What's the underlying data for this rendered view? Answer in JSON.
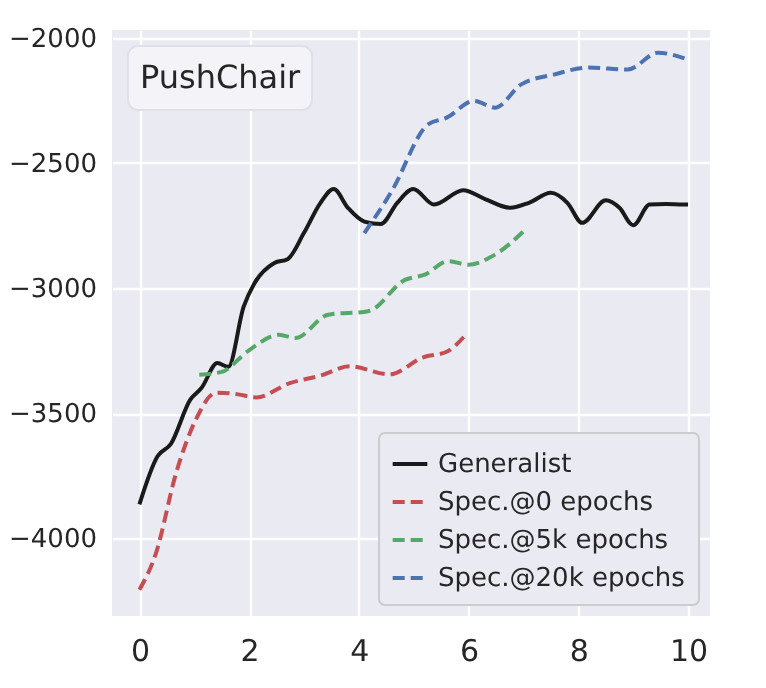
{
  "chart_data": {
    "type": "line",
    "title": "PushChair",
    "xlim": [
      -0.5,
      10.4
    ],
    "xticks": [
      0,
      2,
      4,
      6,
      8,
      10
    ],
    "ylim": [
      -4310,
      -1970
    ],
    "yticks": [
      -4000,
      -3500,
      -3000,
      -2500,
      -2000
    ],
    "grid": true,
    "legend": "bottom right",
    "series": [
      {
        "name": "Generalist",
        "color": "#1a1a1a",
        "line_style": "solid",
        "x": [
          0,
          0.33,
          0.57,
          0.93,
          1.13,
          1.42,
          1.62,
          1.9,
          2.1,
          2.46,
          2.7,
          3.0,
          3.3,
          3.54,
          3.8,
          4.1,
          4.4,
          4.7,
          4.99,
          5.37,
          5.9,
          6.3,
          6.76,
          7.1,
          7.5,
          7.8,
          8.07,
          8.5,
          8.75,
          9.0,
          9.3,
          9.6,
          9.9,
          10
        ],
        "values": [
          -3864,
          -3672,
          -3624,
          -3445,
          -3400,
          -3300,
          -3315,
          -3075,
          -2980,
          -2900,
          -2885,
          -2780,
          -2660,
          -2605,
          -2680,
          -2735,
          -2745,
          -2660,
          -2605,
          -2667,
          -2610,
          -2645,
          -2680,
          -2660,
          -2620,
          -2660,
          -2740,
          -2650,
          -2680,
          -2750,
          -2667,
          -2665,
          -2667,
          -2667
        ]
      },
      {
        "name": "Spec.@0 epochs",
        "color": "#c44e52",
        "line_style": "dashed",
        "x": [
          0,
          0.3,
          0.67,
          1.03,
          1.4,
          1.8,
          2.13,
          2.74,
          3.3,
          3.83,
          4.56,
          5.17,
          5.6,
          5.96
        ],
        "values": [
          -4205,
          -4060,
          -3738,
          -3525,
          -3418,
          -3425,
          -3437,
          -3380,
          -3350,
          -3313,
          -3345,
          -3277,
          -3255,
          -3184
        ]
      },
      {
        "name": "Spec.@5k epochs",
        "color": "#55a868",
        "line_style": "dashed",
        "x": [
          1.09,
          1.5,
          1.99,
          2.54,
          2.84,
          3.44,
          4.17,
          4.84,
          5.2,
          5.63,
          5.99,
          6.48,
          7.03
        ],
        "values": [
          -3347,
          -3335,
          -3250,
          -3187,
          -3200,
          -3107,
          -3093,
          -2968,
          -2947,
          -2893,
          -2907,
          -2867,
          -2768
        ]
      },
      {
        "name": "Spec.@20k epochs",
        "color": "#4c72b0",
        "line_style": "dashed",
        "x": [
          4.1,
          4.6,
          5.26,
          5.6,
          6.1,
          6.48,
          6.96,
          7.57,
          8.18,
          8.9,
          9.45,
          10
        ],
        "values": [
          -2781,
          -2613,
          -2347,
          -2320,
          -2253,
          -2280,
          -2187,
          -2147,
          -2120,
          -2128,
          -2061,
          -2088
        ]
      }
    ]
  }
}
